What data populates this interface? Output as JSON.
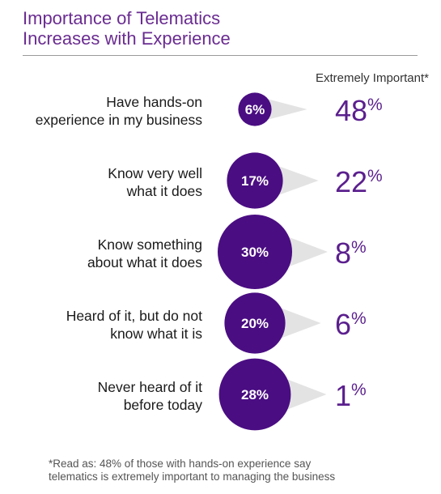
{
  "title_line1": "Importance of Telematics",
  "title_line2": "Increases with Experience",
  "footnote_line1": "*Read as: 48% of those with hands-on experience say",
  "footnote_line2": "telematics is extremely important to managing the business",
  "colors": {
    "title": "#6a2c91",
    "bubble": "#4a0d82",
    "pointer": "#e3e3e3",
    "percent": "#5b1f8e"
  },
  "chart_data": {
    "type": "bubble",
    "column_header": "Extremely Important*",
    "rows": [
      {
        "label_line1": "Have hands-on",
        "label_line2": "experience in my business",
        "share": 6,
        "share_label": "6%",
        "important": 48,
        "important_num": "48",
        "important_unit": "%"
      },
      {
        "label_line1": "Know very well",
        "label_line2": "what it does",
        "share": 17,
        "share_label": "17%",
        "important": 22,
        "important_num": "22",
        "important_unit": "%"
      },
      {
        "label_line1": "Know something",
        "label_line2": "about what it does",
        "share": 30,
        "share_label": "30%",
        "important": 8,
        "important_num": "8",
        "important_unit": "%"
      },
      {
        "label_line1": "Heard of it, but do not",
        "label_line2": "know what it is",
        "share": 20,
        "share_label": "20%",
        "important": 6,
        "important_num": "6",
        "important_unit": "%"
      },
      {
        "label_line1": "Never heard of it",
        "label_line2": "before today",
        "share": 28,
        "share_label": "28%",
        "important": 1,
        "important_num": "1",
        "important_unit": "%"
      }
    ]
  }
}
